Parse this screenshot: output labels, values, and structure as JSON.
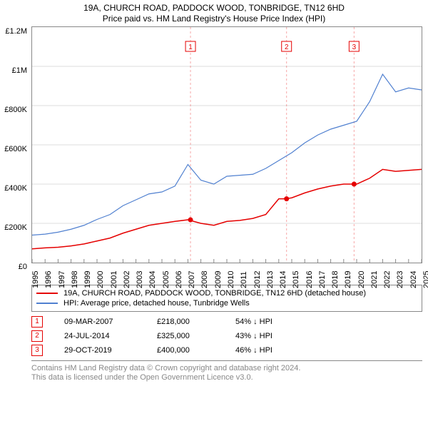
{
  "title_line1": "19A, CHURCH ROAD, PADDOCK WOOD, TONBRIDGE, TN12 6HD",
  "title_line2": "Price paid vs. HM Land Registry's House Price Index (HPI)",
  "chart": {
    "type": "line",
    "background_color": "#ffffff",
    "grid_color": "#dddddd",
    "border_color": "#888888",
    "x_axis": {
      "labels": [
        "1995",
        "1996",
        "1997",
        "1998",
        "1999",
        "2000",
        "2001",
        "2002",
        "2003",
        "2004",
        "2005",
        "2006",
        "2007",
        "2008",
        "2009",
        "2010",
        "2011",
        "2012",
        "2013",
        "2014",
        "2015",
        "2016",
        "2017",
        "2018",
        "2019",
        "2020",
        "2021",
        "2022",
        "2023",
        "2024",
        "2025"
      ],
      "min": 1995,
      "max": 2025
    },
    "y_axis": {
      "min": 0,
      "max": 1200000,
      "tick_step": 200000,
      "tick_labels": [
        "£0",
        "£200K",
        "£400K",
        "£600K",
        "£800K",
        "£1M",
        "£1.2M"
      ]
    },
    "series": [
      {
        "name": "property_price",
        "label": "19A, CHURCH ROAD, PADDOCK WOOD, TONBRIDGE, TN12 6HD (detached house)",
        "color": "#e50000",
        "line_width": 1.5,
        "points": [
          [
            1995,
            70000
          ],
          [
            1996,
            75000
          ],
          [
            1997,
            78000
          ],
          [
            1998,
            85000
          ],
          [
            1999,
            95000
          ],
          [
            2000,
            110000
          ],
          [
            2001,
            125000
          ],
          [
            2002,
            150000
          ],
          [
            2003,
            170000
          ],
          [
            2004,
            190000
          ],
          [
            2005,
            200000
          ],
          [
            2006,
            210000
          ],
          [
            2007,
            218000
          ],
          [
            2008,
            200000
          ],
          [
            2009,
            190000
          ],
          [
            2010,
            210000
          ],
          [
            2011,
            215000
          ],
          [
            2012,
            225000
          ],
          [
            2013,
            245000
          ],
          [
            2014,
            325000
          ],
          [
            2014.5,
            325000
          ],
          [
            2015,
            330000
          ],
          [
            2016,
            355000
          ],
          [
            2017,
            375000
          ],
          [
            2018,
            390000
          ],
          [
            2019,
            400000
          ],
          [
            2020,
            400000
          ],
          [
            2021,
            430000
          ],
          [
            2022,
            475000
          ],
          [
            2023,
            465000
          ],
          [
            2024,
            470000
          ],
          [
            2025,
            475000
          ]
        ]
      },
      {
        "name": "hpi",
        "label": "HPI: Average price, detached house, Tunbridge Wells",
        "color": "#5080d0",
        "line_width": 1.2,
        "points": [
          [
            1995,
            140000
          ],
          [
            1996,
            145000
          ],
          [
            1997,
            155000
          ],
          [
            1998,
            170000
          ],
          [
            1999,
            190000
          ],
          [
            2000,
            220000
          ],
          [
            2001,
            245000
          ],
          [
            2002,
            290000
          ],
          [
            2003,
            320000
          ],
          [
            2004,
            350000
          ],
          [
            2005,
            360000
          ],
          [
            2006,
            390000
          ],
          [
            2007,
            500000
          ],
          [
            2008,
            420000
          ],
          [
            2009,
            400000
          ],
          [
            2010,
            440000
          ],
          [
            2011,
            445000
          ],
          [
            2012,
            450000
          ],
          [
            2013,
            480000
          ],
          [
            2014,
            520000
          ],
          [
            2015,
            560000
          ],
          [
            2016,
            610000
          ],
          [
            2017,
            650000
          ],
          [
            2018,
            680000
          ],
          [
            2019,
            700000
          ],
          [
            2020,
            720000
          ],
          [
            2021,
            820000
          ],
          [
            2022,
            960000
          ],
          [
            2023,
            870000
          ],
          [
            2024,
            890000
          ],
          [
            2025,
            880000
          ]
        ]
      }
    ],
    "markers": [
      {
        "n": "1",
        "x": 2007.2,
        "y": 218000,
        "color": "#e50000"
      },
      {
        "n": "2",
        "x": 2014.6,
        "y": 325000,
        "color": "#e50000"
      },
      {
        "n": "3",
        "x": 2019.8,
        "y": 400000,
        "color": "#e50000"
      }
    ],
    "marker_lines_color": "#e5000055"
  },
  "legend": {
    "items": [
      {
        "color": "#e50000",
        "label": "19A, CHURCH ROAD, PADDOCK WOOD, TONBRIDGE, TN12 6HD (detached house)"
      },
      {
        "color": "#5080d0",
        "label": "HPI: Average price, detached house, Tunbridge Wells"
      }
    ]
  },
  "marker_table": {
    "rows": [
      {
        "n": "1",
        "date": "09-MAR-2007",
        "price": "£218,000",
        "diff": "54% ↓ HPI",
        "color": "#e50000"
      },
      {
        "n": "2",
        "date": "24-JUL-2014",
        "price": "£325,000",
        "diff": "43% ↓ HPI",
        "color": "#e50000"
      },
      {
        "n": "3",
        "date": "29-OCT-2019",
        "price": "£400,000",
        "diff": "46% ↓ HPI",
        "color": "#e50000"
      }
    ]
  },
  "footer": {
    "line1": "Contains HM Land Registry data © Crown copyright and database right 2024.",
    "line2": "This data is licensed under the Open Government Licence v3.0."
  }
}
